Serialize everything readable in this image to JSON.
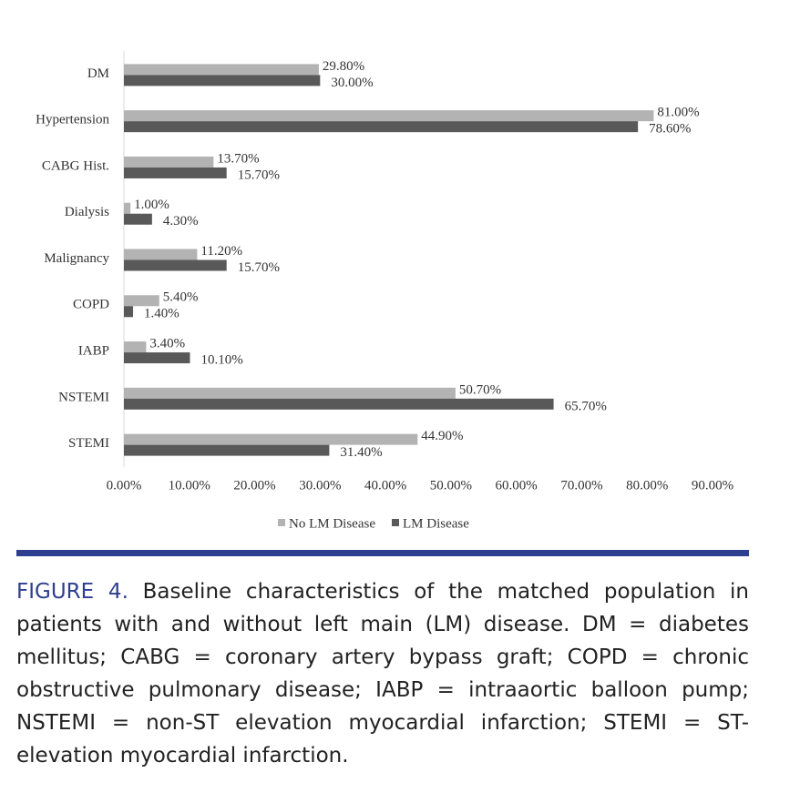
{
  "chart_data": {
    "type": "hbar",
    "categories": [
      "DM",
      "Hypertension",
      "CABG Hist.",
      "Dialysis",
      "Malignancy",
      "COPD",
      "IABP",
      "NSTEMI",
      "STEMI"
    ],
    "series": [
      {
        "name": "No LM Disease",
        "color": "#b3b3b3",
        "values": [
          29.8,
          81.0,
          13.7,
          1.0,
          11.2,
          5.4,
          3.4,
          50.7,
          44.9
        ],
        "value_labels": [
          "29.80%",
          "81.00%",
          "13.70%",
          "1.00%",
          "11.20%",
          "5.40%",
          "3.40%",
          "50.70%",
          "44.90%"
        ]
      },
      {
        "name": "LM Disease",
        "color": "#595959",
        "values": [
          30.0,
          78.6,
          15.7,
          4.3,
          15.7,
          1.4,
          10.1,
          65.7,
          31.4
        ],
        "value_labels": [
          "30.00%",
          "78.60%",
          "15.70%",
          "4.30%",
          "15.70%",
          "1.40%",
          "10.10%",
          "65.70%",
          "31.40%"
        ]
      }
    ],
    "xlim": [
      0,
      90
    ],
    "xticks": [
      {
        "value": 0,
        "label": "0.00%"
      },
      {
        "value": 10,
        "label": "10.00%"
      },
      {
        "value": 20,
        "label": "20.00%"
      },
      {
        "value": 30,
        "label": "30.00%"
      },
      {
        "value": 40,
        "label": "40.00%"
      },
      {
        "value": 50,
        "label": "50.00%"
      },
      {
        "value": 60,
        "label": "60.00%"
      },
      {
        "value": 70,
        "label": "70.00%"
      },
      {
        "value": 80,
        "label": "80.00%"
      },
      {
        "value": 90,
        "label": "90.00%"
      }
    ],
    "grid": false,
    "legend": "bottom"
  },
  "caption": {
    "label": "FIGURE 4.",
    "text": "Baseline characteristics of the matched population in patients with and without left main (LM) disease. DM = diabetes mellitus; CABG = coronary artery bypass graft; COPD = chronic obstructive pulmonary disease; IABP = intraaortic balloon pump; NSTEMI = non-ST elevation myocardial infarction; STEMI = ST-elevation myocardial infarction."
  }
}
